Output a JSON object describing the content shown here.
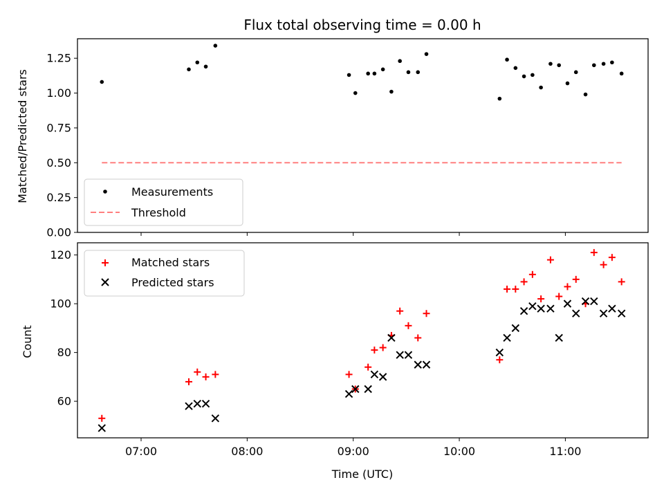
{
  "chart_data": [
    {
      "type": "scatter",
      "title": "Flux total observing time = 0.00 h",
      "ylabel": "Matched/Predicted stars",
      "xlabel": "",
      "xlim": [
        6.4,
        11.78
      ],
      "ylim": [
        0.0,
        1.39
      ],
      "yticks": [
        0.0,
        0.25,
        0.5,
        0.75,
        1.0,
        1.25
      ],
      "ytick_labels": [
        "0.00",
        "0.25",
        "0.50",
        "0.75",
        "1.00",
        "1.25"
      ],
      "legend_position": "lower-left",
      "series": [
        {
          "name": "Measurements",
          "marker": "dot",
          "color": "#000000",
          "x": [
            6.63,
            7.45,
            7.53,
            7.61,
            7.7,
            8.96,
            9.02,
            9.14,
            9.2,
            9.28,
            9.36,
            9.44,
            9.52,
            9.61,
            9.69,
            10.38,
            10.45,
            10.53,
            10.61,
            10.69,
            10.77,
            10.86,
            10.94,
            11.02,
            11.1,
            11.19,
            11.27,
            11.36,
            11.44,
            11.53
          ],
          "y": [
            1.08,
            1.17,
            1.22,
            1.19,
            1.34,
            1.13,
            1.0,
            1.14,
            1.14,
            1.17,
            1.01,
            1.23,
            1.15,
            1.15,
            1.28,
            0.96,
            1.24,
            1.18,
            1.12,
            1.13,
            1.04,
            1.21,
            1.2,
            1.07,
            1.15,
            0.99,
            1.2,
            1.21,
            1.22,
            1.14
          ]
        },
        {
          "name": "Threshold",
          "marker": "dashed-line",
          "color": "#ff7f7f",
          "x": [
            6.63,
            11.53
          ],
          "y": [
            0.5,
            0.5
          ]
        }
      ]
    },
    {
      "type": "scatter",
      "title": "",
      "ylabel": "Count",
      "xlabel": "Time (UTC)",
      "xlim": [
        6.4,
        11.78
      ],
      "ylim": [
        45,
        125
      ],
      "yticks": [
        60,
        80,
        100,
        120
      ],
      "ytick_labels": [
        "60",
        "80",
        "100",
        "120"
      ],
      "xticks": [
        7,
        8,
        9,
        10,
        11
      ],
      "xtick_labels": [
        "07:00",
        "08:00",
        "09:00",
        "10:00",
        "11:00"
      ],
      "legend_position": "upper-left",
      "series": [
        {
          "name": "Matched stars",
          "marker": "plus",
          "color": "#ff0000",
          "x": [
            6.63,
            7.45,
            7.53,
            7.61,
            7.7,
            8.96,
            9.02,
            9.14,
            9.2,
            9.28,
            9.36,
            9.44,
            9.52,
            9.61,
            9.69,
            10.38,
            10.45,
            10.53,
            10.61,
            10.69,
            10.77,
            10.86,
            10.94,
            11.02,
            11.1,
            11.19,
            11.27,
            11.36,
            11.44,
            11.53
          ],
          "y": [
            53,
            68,
            72,
            70,
            71,
            71,
            65,
            74,
            81,
            82,
            87,
            97,
            91,
            86,
            96,
            77,
            106,
            106,
            109,
            112,
            102,
            118,
            103,
            107,
            110,
            100,
            121,
            116,
            119,
            109
          ]
        },
        {
          "name": "Predicted stars",
          "marker": "x",
          "color": "#000000",
          "x": [
            6.63,
            7.45,
            7.53,
            7.61,
            7.7,
            8.96,
            9.02,
            9.14,
            9.2,
            9.28,
            9.36,
            9.44,
            9.52,
            9.61,
            9.69,
            10.38,
            10.45,
            10.53,
            10.61,
            10.69,
            10.77,
            10.86,
            10.94,
            11.02,
            11.1,
            11.19,
            11.27,
            11.36,
            11.44,
            11.53
          ],
          "y": [
            49,
            58,
            59,
            59,
            53,
            63,
            65,
            65,
            71,
            70,
            86,
            79,
            79,
            75,
            75,
            80,
            86,
            90,
            97,
            99,
            98,
            98,
            86,
            100,
            96,
            101,
            101,
            96,
            98,
            96
          ]
        }
      ]
    }
  ]
}
